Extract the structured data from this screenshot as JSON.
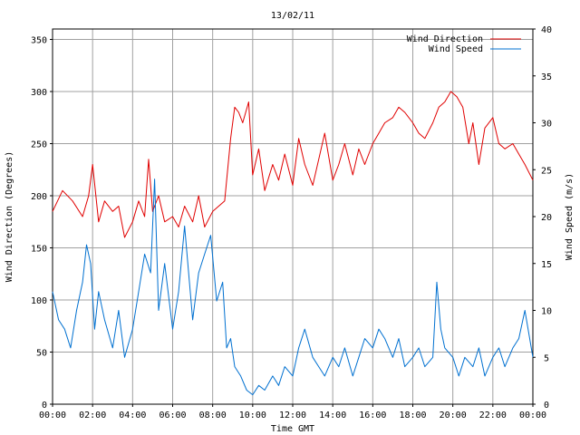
{
  "chart_data": {
    "type": "line",
    "title": "13/02/11",
    "xlabel": "Time GMT",
    "ylabel": "Wind Direction (Degrees)",
    "y2label": "Wind Speed (m/s)",
    "x_unit": "hours",
    "xlim": [
      0,
      24
    ],
    "ylim": [
      0,
      360
    ],
    "y2lim": [
      0,
      40
    ],
    "x_ticks": [
      "00:00",
      "02:00",
      "04:00",
      "06:00",
      "08:00",
      "10:00",
      "12:00",
      "14:00",
      "16:00",
      "18:00",
      "20:00",
      "22:00",
      "00:00"
    ],
    "y_ticks": [
      "0",
      "50",
      "100",
      "150",
      "200",
      "250",
      "300",
      "350"
    ],
    "y2_ticks": [
      "0",
      "5",
      "10",
      "15",
      "20",
      "25",
      "30",
      "35",
      "40"
    ],
    "grid": true,
    "legend_position": "top-right",
    "colors": {
      "direction": "#e00000",
      "speed": "#0070d0",
      "grid": "#a0a0a0"
    },
    "series": [
      {
        "name": "Wind Direction",
        "axis": "left",
        "x": [
          0,
          0.5,
          1,
          1.5,
          1.8,
          2,
          2.3,
          2.6,
          3,
          3.3,
          3.6,
          4,
          4.3,
          4.6,
          4.8,
          5,
          5.3,
          5.6,
          6,
          6.3,
          6.6,
          7,
          7.3,
          7.6,
          8,
          8.3,
          8.6,
          8.9,
          9.1,
          9.3,
          9.5,
          9.8,
          10,
          10.3,
          10.6,
          11,
          11.3,
          11.6,
          12,
          12.3,
          12.6,
          13,
          13.3,
          13.6,
          14,
          14.3,
          14.6,
          15,
          15.3,
          15.6,
          16,
          16.3,
          16.6,
          17,
          17.3,
          17.6,
          18,
          18.3,
          18.6,
          19,
          19.3,
          19.6,
          19.9,
          20.2,
          20.5,
          20.8,
          21,
          21.3,
          21.6,
          22,
          22.3,
          22.6,
          23,
          23.3,
          23.6,
          24
        ],
        "y": [
          185,
          205,
          195,
          180,
          200,
          230,
          175,
          195,
          185,
          190,
          160,
          175,
          195,
          180,
          235,
          185,
          200,
          175,
          180,
          170,
          190,
          175,
          200,
          170,
          185,
          190,
          195,
          255,
          285,
          280,
          270,
          290,
          220,
          245,
          205,
          230,
          215,
          240,
          210,
          255,
          230,
          210,
          235,
          260,
          215,
          230,
          250,
          220,
          245,
          230,
          250,
          260,
          270,
          275,
          285,
          280,
          270,
          260,
          255,
          270,
          285,
          290,
          300,
          295,
          285,
          250,
          270,
          230,
          265,
          275,
          250,
          245,
          250,
          240,
          230,
          215
        ]
      },
      {
        "name": "Wind Speed",
        "axis": "right",
        "x": [
          0,
          0.3,
          0.6,
          0.9,
          1.2,
          1.5,
          1.7,
          1.9,
          2.1,
          2.3,
          2.6,
          3,
          3.3,
          3.6,
          4,
          4.3,
          4.6,
          4.9,
          5.1,
          5.3,
          5.6,
          6,
          6.3,
          6.6,
          7,
          7.3,
          7.6,
          7.9,
          8.2,
          8.5,
          8.7,
          8.9,
          9.1,
          9.4,
          9.7,
          10,
          10.3,
          10.6,
          11,
          11.3,
          11.6,
          12,
          12.3,
          12.6,
          13,
          13.3,
          13.6,
          14,
          14.3,
          14.6,
          15,
          15.3,
          15.6,
          16,
          16.3,
          16.6,
          17,
          17.3,
          17.6,
          18,
          18.3,
          18.6,
          19,
          19.2,
          19.4,
          19.6,
          20,
          20.3,
          20.6,
          21,
          21.3,
          21.6,
          22,
          22.3,
          22.6,
          23,
          23.3,
          23.6,
          24
        ],
        "y": [
          12,
          9,
          8,
          6,
          10,
          13,
          17,
          15,
          8,
          12,
          9,
          6,
          10,
          5,
          8,
          12,
          16,
          14,
          24,
          10,
          15,
          8,
          12,
          19,
          9,
          14,
          16,
          18,
          11,
          13,
          6,
          7,
          4,
          3,
          1.5,
          1,
          2,
          1.5,
          3,
          2,
          4,
          3,
          6,
          8,
          5,
          4,
          3,
          5,
          4,
          6,
          3,
          5,
          7,
          6,
          8,
          7,
          5,
          7,
          4,
          5,
          6,
          4,
          5,
          13,
          8,
          6,
          5,
          3,
          5,
          4,
          6,
          3,
          5,
          6,
          4,
          6,
          7,
          10,
          5
        ]
      }
    ]
  }
}
